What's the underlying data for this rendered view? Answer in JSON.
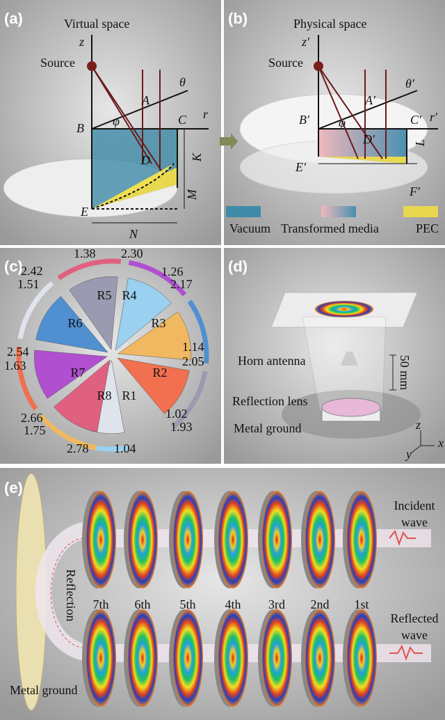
{
  "panel_a": {
    "label": "(a)",
    "title": "Virtual space",
    "z": "z",
    "source": "Source",
    "theta": "θ",
    "r": "r",
    "points": [
      "A",
      "B",
      "C",
      "D",
      "E"
    ],
    "dims": [
      "K",
      "M",
      "N"
    ],
    "phi": "φ"
  },
  "panel_b": {
    "label": "(b)",
    "title": "Physical space",
    "z": "z′",
    "source": "Source",
    "theta": "θ′",
    "r": "r′",
    "points": [
      "A′",
      "B′",
      "C′",
      "D′",
      "E′",
      "F′"
    ],
    "dims": [
      "L"
    ],
    "phi": "φ"
  },
  "legend": [
    "Vacuum",
    "Transformed media",
    "PEC"
  ],
  "panel_c": {
    "label": "(c)",
    "regions": [
      "R1",
      "R2",
      "R3",
      "R4",
      "R5",
      "R6",
      "R7",
      "R8"
    ],
    "ranges": [
      "1.38",
      "2.30",
      "2.42",
      "1.26",
      "1.51",
      "2.17",
      "2.54",
      "1.14",
      "1.63",
      "2.05",
      "2.66",
      "1.02",
      "1.75",
      "1.93",
      "2.78",
      "1.04"
    ]
  },
  "panel_d": {
    "label": "(d)",
    "horn": "Horn antenna",
    "distance": "50 mm",
    "lens": "Reflection lens",
    "ground": "Metal ground",
    "axes": [
      "z",
      "y",
      "x"
    ]
  },
  "panel_e": {
    "label": "(e)",
    "orders": [
      "7th",
      "6th",
      "5th",
      "4th",
      "3rd",
      "2nd",
      "1st"
    ],
    "incident": [
      "Incident",
      "wave"
    ],
    "reflected": [
      "Reflected",
      "wave"
    ],
    "reflection": "Reflection",
    "ground": "Metal ground"
  }
}
